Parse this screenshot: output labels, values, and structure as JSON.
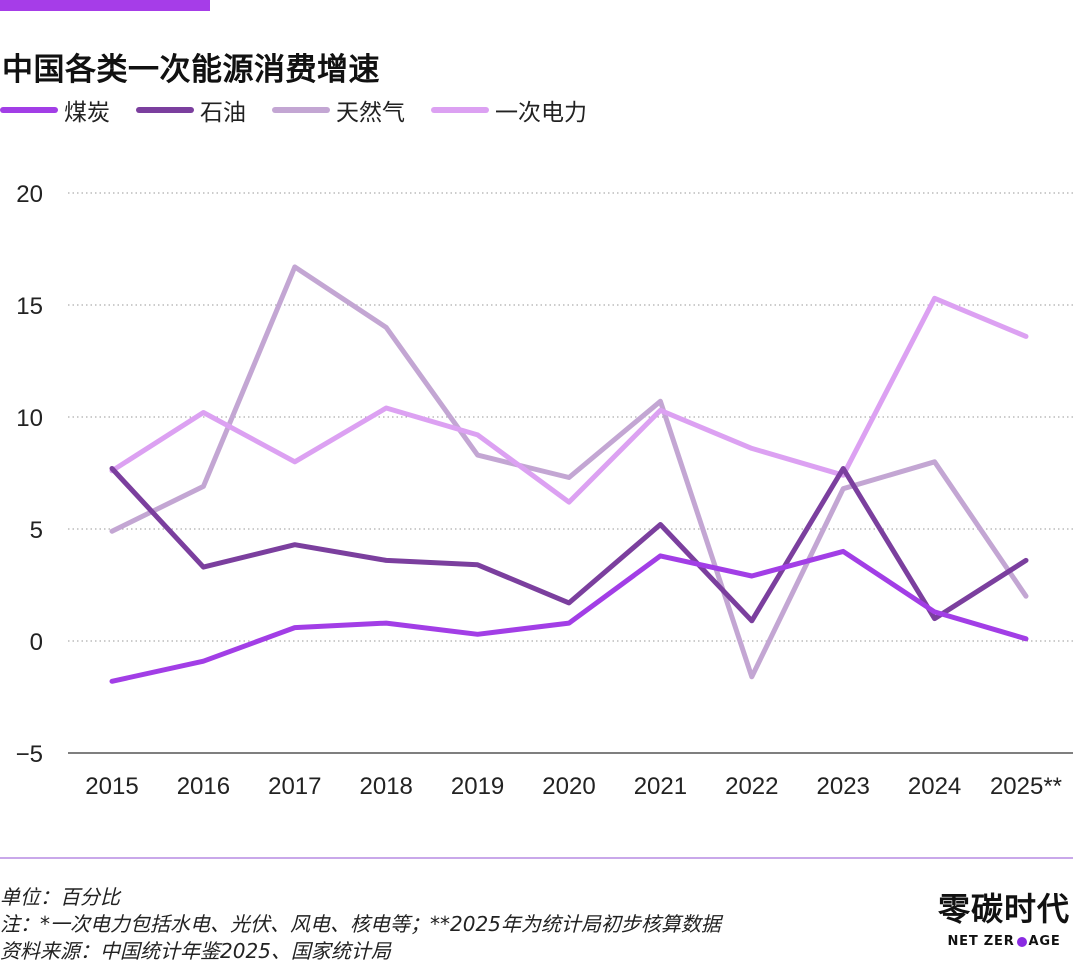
{
  "header": {
    "title": "中国各类一次能源消费增速"
  },
  "footer": {
    "unit": "单位：百分比",
    "note": "注：*一次电力包括水电、光伏、风电、核电等；**2025年为统计局初步核算数据",
    "source": "资料来源：中国统计年鉴2025、国家统计局"
  },
  "logo": {
    "name_cn": "零碳时代",
    "name_en_part1": "NET ZER",
    "name_en_part2": "AGE"
  },
  "colors": {
    "accent": "#a63de8",
    "coal": "#a23ee6",
    "oil": "#7b3f9e",
    "gas": "#c3a6d3",
    "electricity": "#dca1f2"
  },
  "chart_data": {
    "type": "line",
    "title": "中国各类一次能源消费增速",
    "xlabel": "",
    "ylabel": "",
    "x": [
      "2015",
      "2016",
      "2017",
      "2018",
      "2019",
      "2020",
      "2021",
      "2022",
      "2023",
      "2024",
      "2025**"
    ],
    "ylim": [
      -5,
      20
    ],
    "yticks": [
      "−5",
      "0",
      "5",
      "10",
      "15",
      "20"
    ],
    "ytick_values": [
      -5,
      0,
      5,
      10,
      15,
      20
    ],
    "grid": "horizontal dotted",
    "legend": "top-left",
    "series": [
      {
        "name": "煤炭",
        "color": "#a23ee6",
        "values": [
          -1.8,
          -0.9,
          0.6,
          0.8,
          0.3,
          0.8,
          3.8,
          2.9,
          4.0,
          1.3,
          0.1
        ]
      },
      {
        "name": "石油",
        "color": "#7b3f9e",
        "values": [
          7.7,
          3.3,
          4.3,
          3.6,
          3.4,
          1.7,
          5.2,
          0.9,
          7.7,
          1.0,
          3.6
        ]
      },
      {
        "name": "天然气",
        "color": "#c3a6d3",
        "values": [
          4.9,
          6.9,
          16.7,
          14.0,
          8.3,
          7.3,
          10.7,
          -1.6,
          6.8,
          8.0,
          2.0
        ]
      },
      {
        "name": "一次电力",
        "color": "#dca1f2",
        "values": [
          7.6,
          10.2,
          8.0,
          10.4,
          9.2,
          6.2,
          10.3,
          8.6,
          7.4,
          15.3,
          13.6
        ]
      }
    ]
  }
}
